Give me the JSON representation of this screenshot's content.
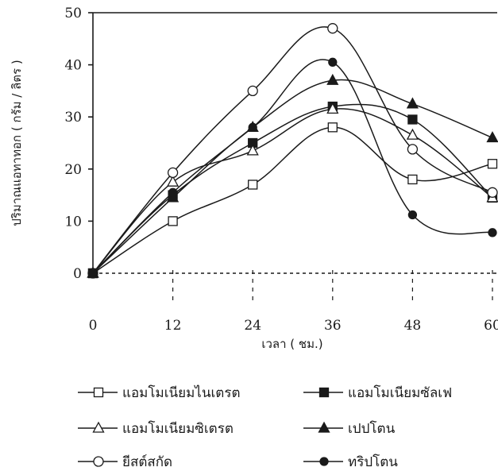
{
  "chart_data": {
    "type": "line",
    "xlabel": "เวลา ( ชม.)",
    "ylabel": "ปริมาณแอทาทอก ( กรัม / ลิตร )",
    "x": [
      0,
      12,
      24,
      36,
      48,
      60
    ],
    "x_tick_labels": [
      "0",
      "12",
      "24",
      "36",
      "48",
      "60"
    ],
    "y_tick_labels": [
      "0",
      "10",
      "20",
      "30",
      "40",
      "50"
    ],
    "xlim": [
      0,
      60
    ],
    "ylim": [
      0,
      50
    ],
    "grid": false,
    "legend_position": "bottom",
    "series": [
      {
        "name": "แอมโมเนียมไนเตรต",
        "marker": "square-open",
        "values": [
          0,
          10,
          17,
          28,
          18,
          21
        ]
      },
      {
        "name": "แอมโมเนียมซัลเฟ",
        "marker": "square-filled",
        "values": [
          0,
          15,
          25,
          32,
          29.5,
          14.5
        ]
      },
      {
        "name": "แอมโมเนียมซิเตรต",
        "marker": "triangle-open",
        "values": [
          0,
          17.5,
          23.5,
          31.5,
          26.5,
          14.5
        ]
      },
      {
        "name": "เปปโตน",
        "marker": "triangle-filled",
        "values": [
          0,
          14.5,
          28,
          37,
          32.5,
          26
        ]
      },
      {
        "name": "ยีสต์สกัด",
        "marker": "circle-open",
        "values": [
          0,
          19.3,
          35,
          47,
          23.8,
          15.5
        ]
      },
      {
        "name": "ทริปโตน",
        "marker": "circle-filled",
        "values": [
          0,
          15.5,
          28,
          40.5,
          11.2,
          7.8
        ]
      }
    ]
  }
}
